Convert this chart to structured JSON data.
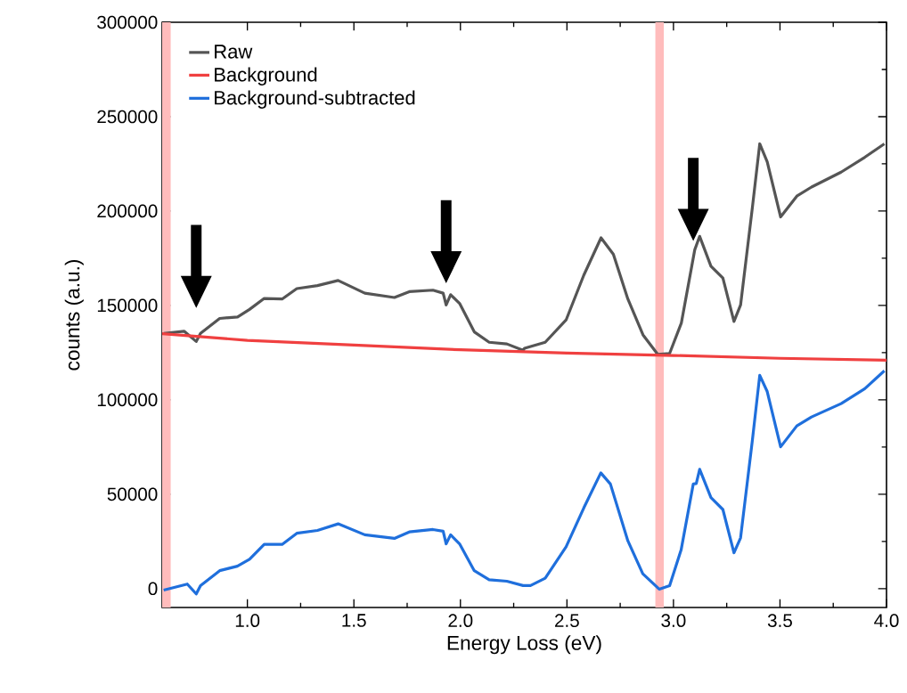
{
  "chart_data": {
    "type": "line",
    "xlabel": "Energy Loss (eV)",
    "ylabel": "counts (a.u.)",
    "xlim": [
      0.6,
      4.0
    ],
    "ylim": [
      -10000,
      300000
    ],
    "xticks": [
      {
        "value": 1.0,
        "label": "1.0"
      },
      {
        "value": 1.5,
        "label": "1.5"
      },
      {
        "value": 2.0,
        "label": "2.0"
      },
      {
        "value": 2.5,
        "label": "2.5"
      },
      {
        "value": 3.0,
        "label": "3.0"
      },
      {
        "value": 3.5,
        "label": "3.5"
      },
      {
        "value": 4.0,
        "label": "4.0"
      }
    ],
    "yticks": [
      0,
      50000,
      100000,
      150000,
      200000,
      250000,
      300000
    ],
    "legend": "top left",
    "grid": false,
    "marker": "none",
    "line_style": "solid",
    "bands": [
      {
        "axis": "x",
        "from": 0.6,
        "to": 0.64,
        "color": "#ffbcbc"
      },
      {
        "axis": "x",
        "from": 2.915,
        "to": 2.955,
        "color": "#ffbcbc"
      }
    ],
    "series": [
      {
        "name": "Raw",
        "color": "#555555",
        "x": [
          0.607,
          0.704,
          0.76,
          0.78,
          0.87,
          0.954,
          1.01,
          1.079,
          1.163,
          1.232,
          1.329,
          1.426,
          1.551,
          1.69,
          1.76,
          1.871,
          1.919,
          1.933,
          1.954,
          1.996,
          2.065,
          2.135,
          2.218,
          2.294,
          2.301,
          2.398,
          2.496,
          2.579,
          2.66,
          2.718,
          2.786,
          2.857,
          2.926,
          2.982,
          3.037,
          3.1,
          3.123,
          3.176,
          3.232,
          3.284,
          3.315,
          3.371,
          3.405,
          3.44,
          3.503,
          3.579,
          3.648,
          3.787,
          3.898,
          3.99
        ],
        "values": [
          135200,
          136300,
          130900,
          135200,
          143100,
          143900,
          147900,
          153700,
          153400,
          158900,
          160500,
          163200,
          156500,
          154200,
          157300,
          158100,
          156500,
          150200,
          155700,
          151100,
          136000,
          130500,
          129600,
          126200,
          127300,
          130500,
          142300,
          166000,
          185800,
          177100,
          153400,
          134400,
          124100,
          124600,
          140700,
          179500,
          186600,
          170800,
          164500,
          141500,
          150200,
          202400,
          235600,
          226100,
          196900,
          207900,
          212700,
          220600,
          228500,
          235600
        ]
      },
      {
        "name": "Background",
        "color": "#f04040",
        "x": [
          0.6,
          1.0,
          1.5,
          2.0,
          2.5,
          3.0,
          3.5,
          4.0
        ],
        "values": [
          135000,
          131500,
          129000,
          126500,
          124800,
          123500,
          122000,
          121000
        ]
      },
      {
        "name": "Background-subtracted",
        "color": "#1f6fdc",
        "x": [
          0.607,
          0.718,
          0.76,
          0.78,
          0.87,
          0.953,
          1.01,
          1.079,
          1.163,
          1.232,
          1.329,
          1.426,
          1.551,
          1.69,
          1.76,
          1.871,
          1.919,
          1.933,
          1.954,
          1.996,
          2.065,
          2.135,
          2.218,
          2.294,
          2.329,
          2.398,
          2.496,
          2.579,
          2.659,
          2.704,
          2.786,
          2.856,
          2.933,
          2.982,
          3.036,
          3.093,
          3.107,
          3.123,
          3.176,
          3.232,
          3.284,
          3.315,
          3.371,
          3.405,
          3.44,
          3.503,
          3.579,
          3.648,
          3.787,
          3.898,
          3.99
        ],
        "values": [
          -800,
          2400,
          -2800,
          1600,
          9500,
          11900,
          15500,
          23400,
          23400,
          29300,
          30800,
          34300,
          28500,
          26600,
          30000,
          31300,
          30400,
          23700,
          28500,
          23700,
          9500,
          4700,
          3900,
          1600,
          1600,
          5500,
          22100,
          42700,
          61300,
          55400,
          25300,
          7900,
          -300,
          1600,
          20500,
          55400,
          55600,
          63200,
          48200,
          41900,
          19000,
          26900,
          79100,
          113000,
          104400,
          75100,
          86200,
          90900,
          98000,
          105900,
          115400
        ]
      }
    ]
  }
}
